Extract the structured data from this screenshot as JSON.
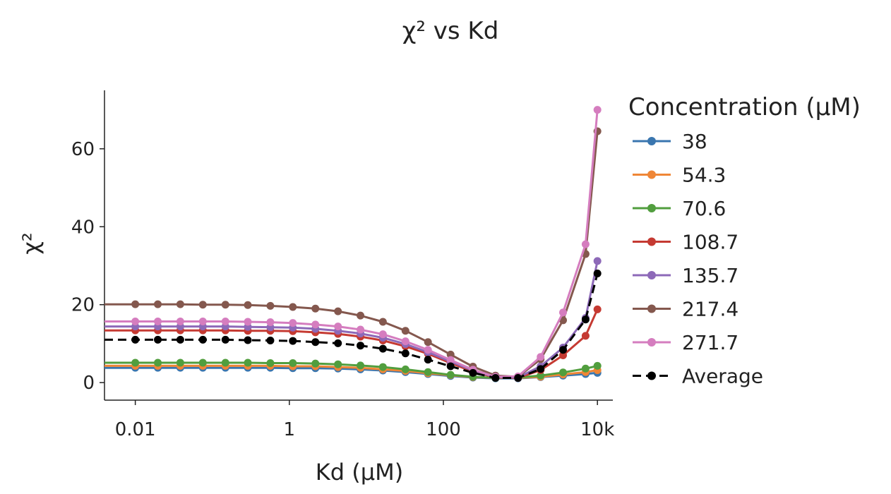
{
  "chart_data": {
    "type": "line",
    "title": "χ² vs Kd",
    "xlabel": "Kd (μM)",
    "ylabel": "χ²",
    "x_scale": "log",
    "x_ticks": [
      0.01,
      1,
      100,
      10000
    ],
    "x_tick_labels": [
      "0.01",
      "1",
      "100",
      "10k"
    ],
    "y_ticks": [
      0,
      20,
      40,
      60
    ],
    "y_tick_labels": [
      "0",
      "20",
      "40",
      "60"
    ],
    "ylim": [
      -4.5,
      75
    ],
    "grid": false,
    "legend_title": "Concentration (μM)",
    "legend_position": "right",
    "x": [
      0.01,
      0.0196,
      0.0384,
      0.0753,
      0.148,
      0.289,
      0.567,
      1.11,
      2.18,
      4.28,
      8.38,
      16.4,
      32.2,
      63.1,
      124,
      242,
      475,
      931,
      1830,
      3580,
      7020,
      10000
    ],
    "series": [
      {
        "name": "38",
        "color": "#3a76af",
        "style": "solid",
        "values": [
          3.8,
          3.8,
          3.8,
          3.8,
          3.8,
          3.8,
          3.8,
          3.7,
          3.7,
          3.6,
          3.4,
          3.1,
          2.7,
          2.2,
          1.7,
          1.3,
          1.1,
          1.1,
          1.4,
          1.8,
          2.2,
          2.5
        ]
      },
      {
        "name": "54.3",
        "color": "#ef8636",
        "style": "solid",
        "values": [
          4.3,
          4.3,
          4.3,
          4.3,
          4.3,
          4.3,
          4.3,
          4.2,
          4.2,
          4.0,
          3.8,
          3.4,
          3.0,
          2.4,
          1.9,
          1.4,
          1.2,
          1.2,
          1.5,
          2.1,
          2.7,
          3.2
        ]
      },
      {
        "name": "70.6",
        "color": "#519e3e",
        "style": "solid",
        "values": [
          5.1,
          5.1,
          5.1,
          5.1,
          5.1,
          5.1,
          5.0,
          5.0,
          4.9,
          4.7,
          4.4,
          4.0,
          3.4,
          2.7,
          2.0,
          1.5,
          1.2,
          1.3,
          1.8,
          2.6,
          3.6,
          4.3
        ]
      },
      {
        "name": "108.7",
        "color": "#c53a32",
        "style": "solid",
        "values": [
          13.4,
          13.4,
          13.4,
          13.4,
          13.4,
          13.3,
          13.3,
          13.2,
          12.9,
          12.5,
          11.8,
          10.8,
          9.3,
          7.4,
          5.0,
          2.8,
          1.3,
          1.2,
          3.2,
          7.0,
          12.0,
          18.8
        ]
      },
      {
        "name": "135.7",
        "color": "#8d69b8",
        "style": "solid",
        "values": [
          14.4,
          14.4,
          14.4,
          14.4,
          14.4,
          14.3,
          14.2,
          14.1,
          13.8,
          13.3,
          12.6,
          11.5,
          9.9,
          7.8,
          5.4,
          3.1,
          1.4,
          1.3,
          4.2,
          9.0,
          16.6,
          31.2
        ]
      },
      {
        "name": "217.4",
        "color": "#84584e",
        "style": "solid",
        "values": [
          20.1,
          20.1,
          20.1,
          20.0,
          20.0,
          19.9,
          19.7,
          19.4,
          19.0,
          18.3,
          17.2,
          15.6,
          13.3,
          10.4,
          7.2,
          4.1,
          1.8,
          1.5,
          6.0,
          16.0,
          33.0,
          64.5
        ]
      },
      {
        "name": "271.7",
        "color": "#d57dbf",
        "style": "solid",
        "values": [
          15.7,
          15.7,
          15.7,
          15.7,
          15.7,
          15.6,
          15.5,
          15.3,
          14.9,
          14.4,
          13.6,
          12.4,
          10.6,
          8.4,
          5.8,
          3.3,
          1.5,
          1.6,
          6.6,
          18.0,
          35.5,
          70.0
        ]
      },
      {
        "name": "Average",
        "color": "#000000",
        "style": "dashed",
        "values": [
          11.0,
          11.0,
          11.0,
          11.0,
          11.0,
          10.9,
          10.8,
          10.7,
          10.4,
          10.1,
          9.5,
          8.7,
          7.5,
          5.9,
          4.2,
          2.5,
          1.2,
          1.2,
          3.5,
          8.4,
          16.2,
          28.0
        ]
      }
    ]
  }
}
